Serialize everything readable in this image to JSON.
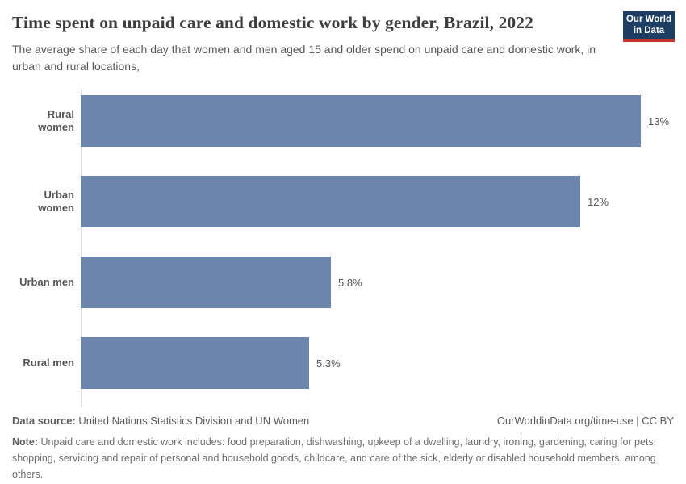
{
  "header": {
    "title": "Time spent on unpaid care and domestic work by gender, Brazil, 2022",
    "subtitle": "The average share of each day that women and men aged 15 and older spend on unpaid care and domestic work, in urban and rural locations,",
    "logo": {
      "line1": "Our World",
      "line2": "in Data"
    }
  },
  "chart_data": {
    "type": "bar",
    "orientation": "horizontal",
    "title": "Time spent on unpaid care and domestic work by gender, Brazil, 2022",
    "categories": [
      "Rural women",
      "Urban women",
      "Urban men",
      "Rural men"
    ],
    "values": [
      13,
      11.6,
      5.8,
      5.3
    ],
    "value_labels": [
      "13%",
      "12%",
      "5.8%",
      "5.3%"
    ],
    "unit": "%",
    "xlim": [
      0,
      13
    ],
    "grid": false,
    "legend": "none",
    "bar_color": "#6c85ad",
    "rows": [
      {
        "label": "Rural women",
        "value": 13,
        "display_value": "13%"
      },
      {
        "label": "Urban women",
        "value": 11.6,
        "display_value": "12%"
      },
      {
        "label": "Urban men",
        "value": 5.8,
        "display_value": "5.8%"
      },
      {
        "label": "Rural men",
        "value": 5.3,
        "display_value": "5.3%"
      }
    ]
  },
  "footer": {
    "source_label": "Data source:",
    "source_text": "United Nations Statistics Division and UN Women",
    "attribution": "OurWorldinData.org/time-use | CC BY",
    "note_label": "Note:",
    "note_text": "Unpaid care and domestic work includes: food preparation, dishwashing, upkeep of a dwelling, laundry, ironing, gardening, caring for pets, shopping, servicing and repair of personal and household goods, childcare, and care of the sick, elderly or disabled household members, among others."
  },
  "colors": {
    "bar": "#6c85ad",
    "logo_background": "#1d3d63",
    "logo_stripe": "#c5332d",
    "axis_line": "#dcdcdc",
    "title_text": "#3d3d3d",
    "body_text": "#555555",
    "footer_text": "#5b5b5b"
  }
}
